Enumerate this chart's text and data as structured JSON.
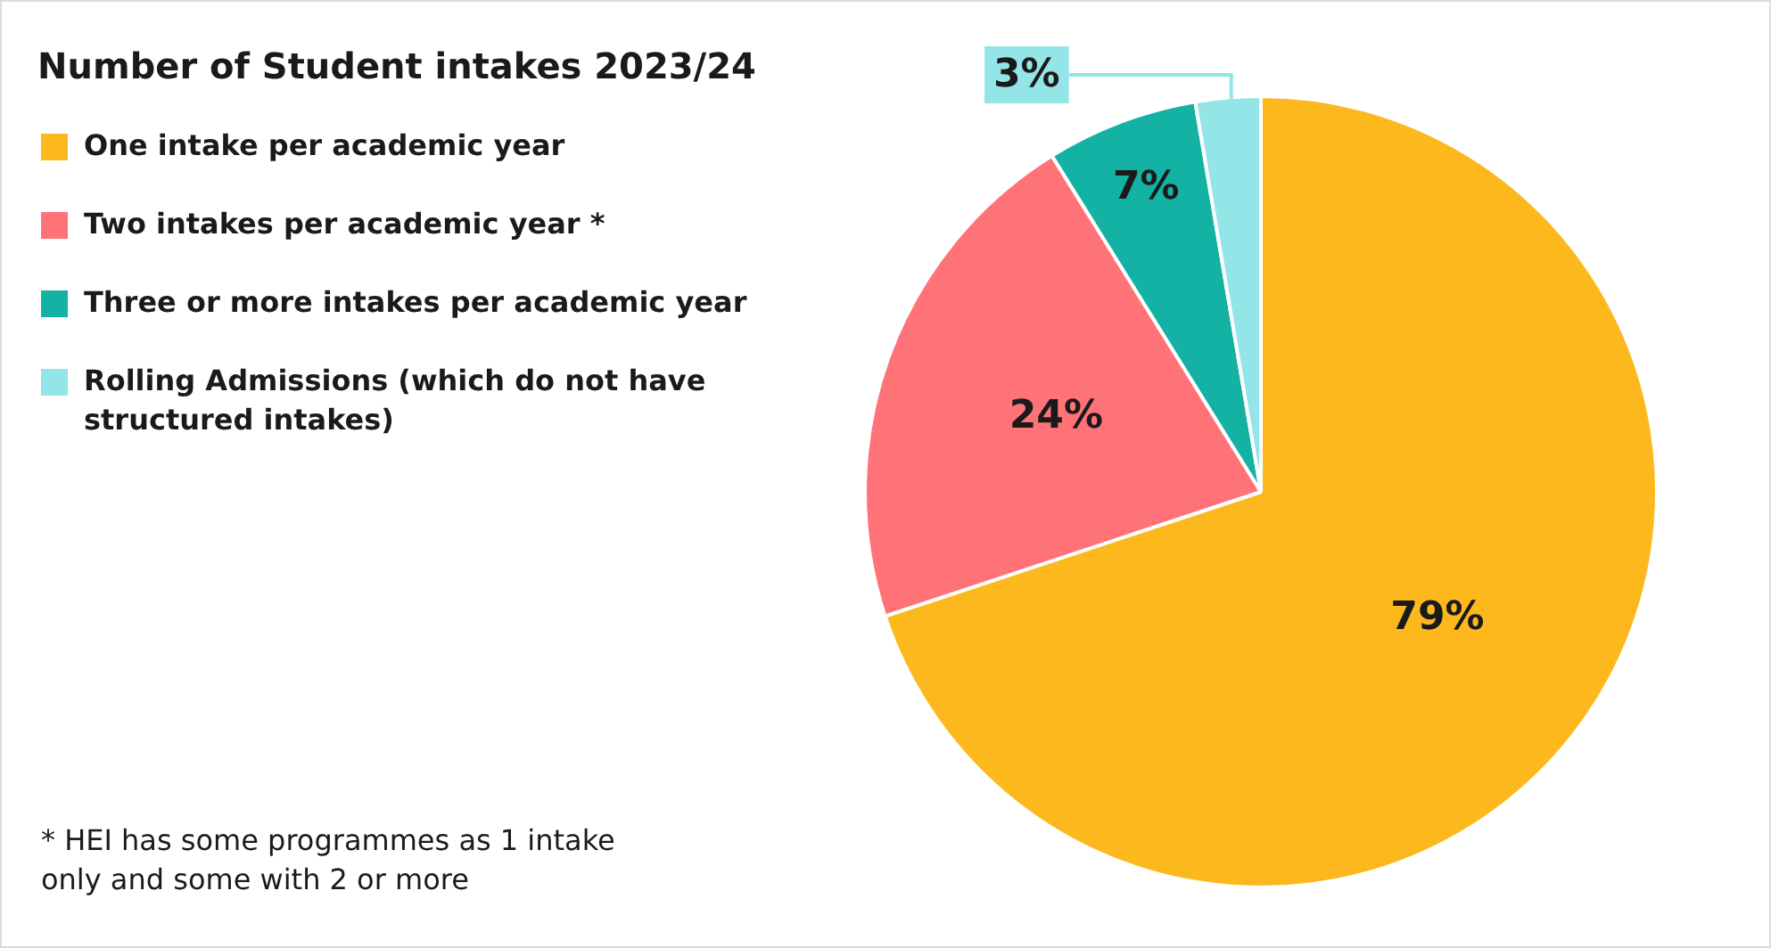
{
  "chart_data": {
    "type": "pie",
    "title": "Number of Student intakes 2023/24",
    "categories": [
      "One intake per academic year",
      "Two intakes per academic year *",
      "Three or more intakes per academic year",
      "Rolling Admissions (which do not have structured intakes)"
    ],
    "values": [
      79,
      24,
      7,
      3
    ],
    "colors": [
      "#fdb81e",
      "#ff7378",
      "#14b1a5",
      "#94e5e8"
    ],
    "value_labels": [
      "79%",
      "24%",
      "7%",
      "3%"
    ],
    "legend": "top left",
    "annotations": [
      "* HEI has some programmes as 1 intake only and some with 2 or more"
    ]
  }
}
